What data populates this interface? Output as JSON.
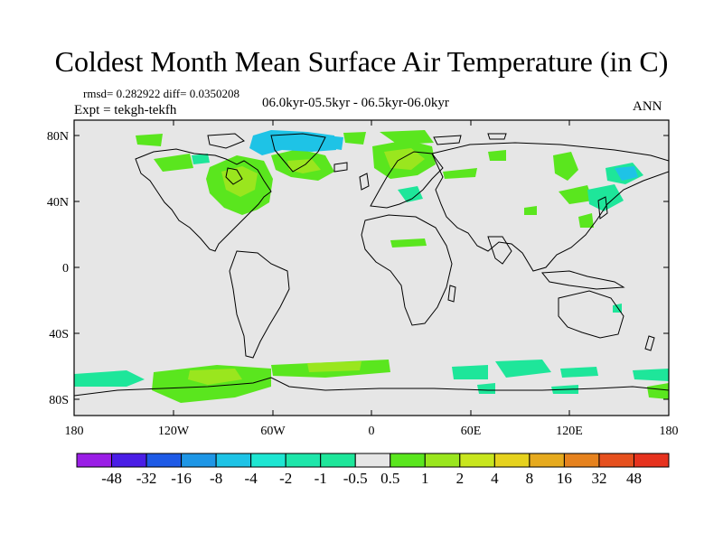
{
  "title": "Coldest Month Mean Surface Air Temperature (in C)",
  "stats": "rmsd= 0.282922  diff= 0.0350208",
  "experiment": "Expt = tekgh-tekfh",
  "period": "06.0kyr-05.5kyr - 06.5kyr-06.0kyr",
  "season": "ANN",
  "axes": {
    "y_ticks": [
      "80N",
      "40N",
      "0",
      "40S",
      "80S"
    ],
    "x_ticks": [
      "180",
      "120W",
      "60W",
      "0",
      "60E",
      "120E",
      "180"
    ]
  },
  "colorbar": {
    "labels": [
      "-48",
      "-32",
      "-16",
      "-8",
      "-4",
      "-2",
      "-1",
      "-0.5",
      "0.5",
      "1",
      "2",
      "4",
      "8",
      "16",
      "32",
      "48"
    ],
    "colors": [
      "#9a1ee6",
      "#4a1ee6",
      "#1e5ae6",
      "#1e96e6",
      "#1ec3e6",
      "#1ee6d2",
      "#1ee6aa",
      "#1ee69a",
      "#e6e6e6",
      "#5ae61e",
      "#9ae61e",
      "#c8e61e",
      "#e6d21e",
      "#e6aa1e",
      "#e6821e",
      "#e6501e",
      "#e6321e"
    ]
  },
  "map_colors": {
    "background": "#e6e6e6",
    "warm_light": "#5ae61e",
    "warm_mid": "#9ae61e",
    "warm_high": "#c8e61e",
    "cool_light": "#1ee69a",
    "cool_mid": "#1ec3e6",
    "coast": "#000000"
  }
}
